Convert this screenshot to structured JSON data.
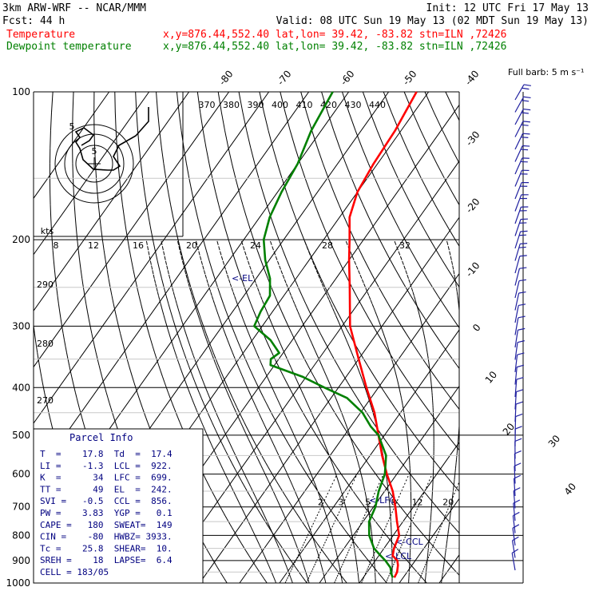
{
  "header": {
    "model": "3km ARW-WRF -- NCAR/MMM",
    "init": "Init: 12 UTC Fri 17 May 13",
    "fcst": "Fcst:    44 h",
    "valid": "Valid: 08 UTC Sun 19 May 13 (02 MDT Sun 19 May 13)",
    "temp_label": "Temperature",
    "temp_info": "x,y=876.44,552.40   lat,lon= 39.42, -83.82  stn=ILN ,72426",
    "dew_label": "Dewpoint temperature",
    "dew_info": "x,y=876.44,552.40   lat,lon= 39.42, -83.82  stn=ILN ,72426"
  },
  "chart_data": {
    "type": "line",
    "title": "",
    "pressure_levels": [
      100,
      200,
      300,
      400,
      500,
      600,
      700,
      800,
      900,
      1000
    ],
    "theta_labels": [
      "370",
      "380",
      "390",
      "400",
      "410",
      "420",
      "430",
      "440"
    ],
    "mixing_ratio_labels": [
      "2",
      "3",
      "5",
      "8",
      "12",
      "20"
    ],
    "isotherm_labels": [
      "-80",
      "-70",
      "-60",
      "-50",
      "-40",
      "-30",
      "-20",
      "-10",
      "0",
      "10",
      "20",
      "30",
      "40"
    ],
    "hodograph_speed_labels": [
      "kts",
      "8",
      "12",
      "16",
      "20",
      "24",
      "28",
      "32"
    ],
    "dry_adiabat_labels": [
      "290",
      "280",
      "270"
    ],
    "barb_scale_label": "Full barb: 5 m s⁻¹",
    "series": [
      {
        "name": "Temperature",
        "color": "#ff0000",
        "points": [
          {
            "p": 100,
            "t": -63
          },
          {
            "p": 120,
            "t": -61.5
          },
          {
            "p": 140,
            "t": -61
          },
          {
            "p": 160,
            "t": -60
          },
          {
            "p": 180,
            "t": -57.5
          },
          {
            "p": 200,
            "t": -53.5
          },
          {
            "p": 220,
            "t": -50
          },
          {
            "p": 250,
            "t": -45
          },
          {
            "p": 300,
            "t": -38
          },
          {
            "p": 350,
            "t": -30
          },
          {
            "p": 400,
            "t": -23
          },
          {
            "p": 450,
            "t": -16.5
          },
          {
            "p": 500,
            "t": -11.5
          },
          {
            "p": 550,
            "t": -7
          },
          {
            "p": 600,
            "t": -2.5
          },
          {
            "p": 650,
            "t": 2
          },
          {
            "p": 700,
            "t": 5.5
          },
          {
            "p": 750,
            "t": 8.5
          },
          {
            "p": 800,
            "t": 11.5
          },
          {
            "p": 850,
            "t": 12.5
          },
          {
            "p": 880,
            "t": 13.5
          },
          {
            "p": 900,
            "t": 15.5
          },
          {
            "p": 920,
            "t": 16.5
          },
          {
            "p": 950,
            "t": 17.5
          },
          {
            "p": 975,
            "t": 17.8
          }
        ]
      },
      {
        "name": "Dewpoint temperature",
        "color": "#008000",
        "points": [
          {
            "p": 100,
            "t": -84
          },
          {
            "p": 120,
            "t": -82.5
          },
          {
            "p": 140,
            "t": -80
          },
          {
            "p": 160,
            "t": -79
          },
          {
            "p": 180,
            "t": -77.5
          },
          {
            "p": 200,
            "t": -75
          },
          {
            "p": 220,
            "t": -71
          },
          {
            "p": 240,
            "t": -66.5
          },
          {
            "p": 260,
            "t": -63.5
          },
          {
            "p": 280,
            "t": -63
          },
          {
            "p": 300,
            "t": -62
          },
          {
            "p": 320,
            "t": -55.5
          },
          {
            "p": 340,
            "t": -51
          },
          {
            "p": 350,
            "t": -52
          },
          {
            "p": 360,
            "t": -51
          },
          {
            "p": 380,
            "t": -41
          },
          {
            "p": 400,
            "t": -33.5
          },
          {
            "p": 420,
            "t": -26
          },
          {
            "p": 450,
            "t": -19.5
          },
          {
            "p": 480,
            "t": -15
          },
          {
            "p": 500,
            "t": -11.5
          },
          {
            "p": 550,
            "t": -6
          },
          {
            "p": 600,
            "t": -3
          },
          {
            "p": 650,
            "t": -1.5
          },
          {
            "p": 700,
            "t": 0.5
          },
          {
            "p": 750,
            "t": 1.5
          },
          {
            "p": 800,
            "t": 4
          },
          {
            "p": 850,
            "t": 7.5
          },
          {
            "p": 880,
            "t": 10.5
          },
          {
            "p": 900,
            "t": 12.5
          },
          {
            "p": 930,
            "t": 15
          },
          {
            "p": 960,
            "t": 16.5
          },
          {
            "p": 975,
            "t": 17.4
          }
        ]
      }
    ],
    "level_markers": [
      "<-EL",
      "<-LFC",
      "<-CCL",
      "<-LCL"
    ]
  },
  "parcel_info": {
    "title": "Parcel Info",
    "rows": [
      "T  =    17.8  Td  =  17.4",
      "LI =    -1.3  LCL =  922.",
      "K  =      34  LFC =  699.",
      "TT =      49  EL  =  242.",
      "SVI =   -0.5  CCL =  856.",
      "PW =    3.83  YGP =   0.1",
      "CAPE =   180  SWEAT=  149",
      "CIN =    -80  HWBZ= 3933.",
      "Tc =    25.8  SHEAR=  10.",
      "SREH =    18  LAPSE=  6.4",
      "CELL = 183/05"
    ]
  },
  "colors": {
    "temperature": "#ff0000",
    "dewpoint": "#008000",
    "barbs": "#2020a0",
    "parcel_text": "#000080",
    "grid": "#000000"
  }
}
